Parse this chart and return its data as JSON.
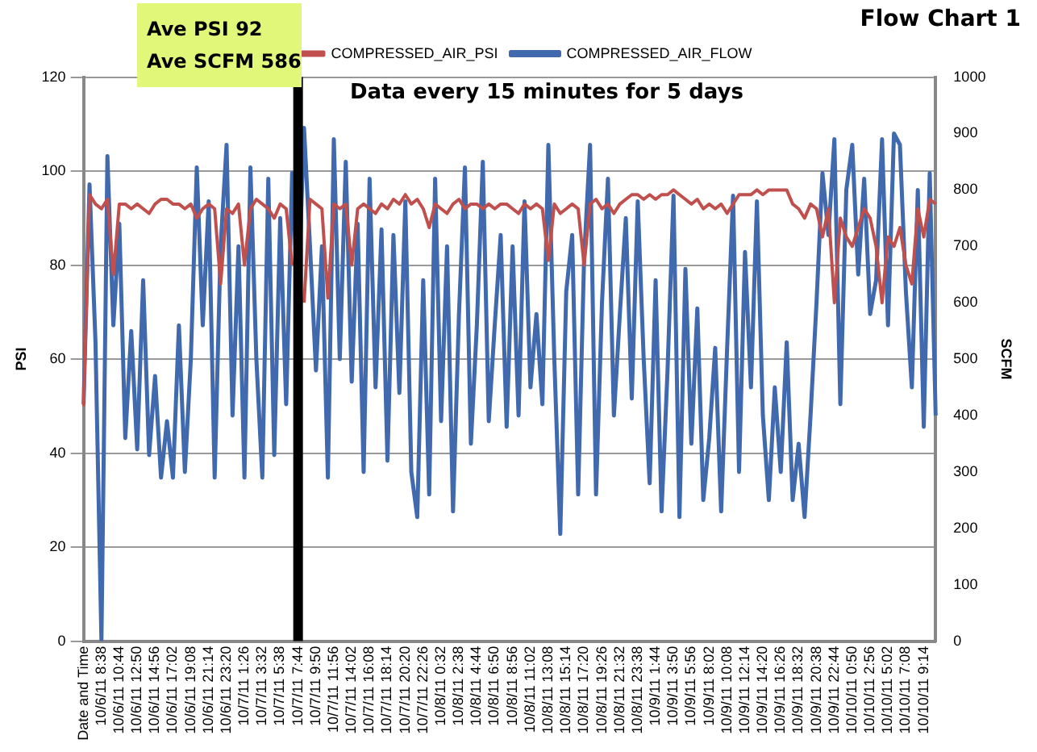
{
  "chart_data": {
    "type": "line",
    "title": "Flow Chart 1",
    "categories": [
      "Date and Time",
      null,
      null,
      "10/6/11 8:38",
      null,
      null,
      "10/6/11 10:44",
      null,
      null,
      "10/6/11 12:50",
      null,
      null,
      "10/6/11 14:56",
      null,
      null,
      "10/6/11 17:02",
      null,
      null,
      "10/6/11 19:08",
      null,
      null,
      "10/6/11 21:14",
      null,
      null,
      "10/6/11 23:20",
      null,
      null,
      "10/7/11 1:26",
      null,
      null,
      "10/7/11 3:32",
      null,
      null,
      "10/7/11 5:38",
      null,
      null,
      "10/7/11 7:44",
      null,
      null,
      "10/7/11 9:50",
      null,
      null,
      "10/7/11 11:56",
      null,
      null,
      "10/7/11 14:02",
      null,
      null,
      "10/7/11 16:08",
      null,
      null,
      "10/7/11 18:14",
      null,
      null,
      "10/7/11 20:20",
      null,
      null,
      "10/7/11 22:26",
      null,
      null,
      "10/8/11 0:32",
      null,
      null,
      "10/8/11 2:38",
      null,
      null,
      "10/8/11 4:44",
      null,
      null,
      "10/8/11 6:50",
      null,
      null,
      "10/8/11 8:56",
      null,
      null,
      "10/8/11 11:02",
      null,
      null,
      "10/8/11 13:08",
      null,
      null,
      "10/8/11 15:14",
      null,
      null,
      "10/8/11 17:20",
      null,
      null,
      "10/8/11 19:26",
      null,
      null,
      "10/8/11 21:32",
      null,
      null,
      "10/8/11 23:38",
      null,
      null,
      "10/9/11 1:44",
      null,
      null,
      "10/9/11 3:50",
      null,
      null,
      "10/9/11 5:56",
      null,
      null,
      "10/9/11 8:02",
      null,
      null,
      "10/9/11 10:08",
      null,
      null,
      "10/9/11 12:14",
      null,
      null,
      "10/9/11 14:20",
      null,
      null,
      "10/9/11 16:26",
      null,
      null,
      "10/9/11 18:32",
      null,
      null,
      "10/9/11 20:38",
      null,
      null,
      "10/9/11 22:44",
      null,
      null,
      "10/10/11 0:50",
      null,
      null,
      "10/10/11 2:56",
      null,
      null,
      "10/10/11 5:02",
      null,
      null,
      "10/10/11 7:08",
      null,
      null,
      "10/10/11 9:14",
      null,
      null
    ],
    "series": [
      {
        "name": "COMPRESSED_AIR_PSI",
        "color": "#c0504d",
        "values": [
          50,
          95,
          93,
          92,
          94,
          78,
          93,
          93,
          92,
          93,
          92,
          91,
          93,
          94,
          94,
          93,
          93,
          92,
          93,
          90,
          92,
          93,
          92,
          76,
          92,
          91,
          93,
          80,
          92,
          94,
          93,
          92,
          90,
          93,
          92,
          80,
          null,
          72,
          94,
          93,
          92,
          73,
          93,
          92,
          93,
          80,
          92,
          93,
          92,
          91,
          93,
          92,
          94,
          93,
          95,
          93,
          94,
          92,
          88,
          93,
          92,
          91,
          93,
          94,
          92,
          93,
          93,
          92,
          93,
          92,
          93,
          93,
          92,
          91,
          93,
          92,
          93,
          92,
          81,
          93,
          91,
          92,
          93,
          92,
          80,
          93,
          94,
          92,
          93,
          91,
          93,
          94,
          95,
          95,
          94,
          95,
          94,
          95,
          95,
          96,
          95,
          94,
          93,
          94,
          92,
          93,
          92,
          93,
          91,
          93,
          95,
          95,
          95,
          96,
          95,
          96,
          96,
          96,
          96,
          93,
          92,
          90,
          93,
          92,
          86,
          92,
          72,
          90,
          86,
          84,
          88,
          92,
          90,
          84,
          72,
          86,
          84,
          88,
          80,
          76,
          92,
          86,
          94,
          93
        ]
      },
      {
        "name": "COMPRESSED_AIR_FLOW",
        "color": "#4169ae",
        "axis": "y2",
        "values": [
          420,
          810,
          530,
          0,
          860,
          560,
          740,
          360,
          550,
          340,
          640,
          330,
          470,
          290,
          390,
          290,
          560,
          300,
          500,
          840,
          560,
          780,
          290,
          700,
          880,
          400,
          700,
          290,
          840,
          500,
          290,
          820,
          330,
          750,
          420,
          830,
          600,
          910,
          700,
          480,
          700,
          290,
          890,
          500,
          850,
          460,
          740,
          300,
          820,
          450,
          730,
          320,
          720,
          440,
          780,
          300,
          220,
          640,
          260,
          820,
          390,
          700,
          230,
          580,
          840,
          350,
          560,
          850,
          390,
          560,
          720,
          380,
          700,
          400,
          780,
          450,
          580,
          420,
          880,
          500,
          190,
          620,
          720,
          260,
          680,
          880,
          260,
          600,
          820,
          400,
          580,
          750,
          430,
          780,
          500,
          280,
          640,
          230,
          480,
          790,
          220,
          660,
          350,
          590,
          250,
          360,
          520,
          230,
          520,
          790,
          300,
          690,
          450,
          780,
          400,
          250,
          450,
          300,
          530,
          250,
          350,
          220,
          400,
          600,
          830,
          720,
          890,
          420,
          800,
          880,
          650,
          820,
          580,
          640,
          890,
          560,
          900,
          880,
          620,
          450,
          800,
          380,
          830,
          400
        ]
      }
    ],
    "ylabel": "PSI",
    "y2label": "SCFM",
    "ylim": [
      0,
      120
    ],
    "yticks": [
      0,
      20,
      40,
      60,
      80,
      100,
      120
    ],
    "y2lim": [
      0,
      1000
    ],
    "y2ticks": [
      0,
      100,
      200,
      300,
      400,
      500,
      600,
      700,
      800,
      900,
      1000
    ],
    "ref_lines": [
      {
        "axis": "x",
        "value": "10/7/11 7:44",
        "color": "#000000"
      }
    ],
    "annotations": [
      "Ave PSI 92",
      "Ave SCFM 586",
      "Data every 15 minutes for 5 days"
    ],
    "grid": "y",
    "legend": "top",
    "marker": "none",
    "line_style": "solid"
  }
}
